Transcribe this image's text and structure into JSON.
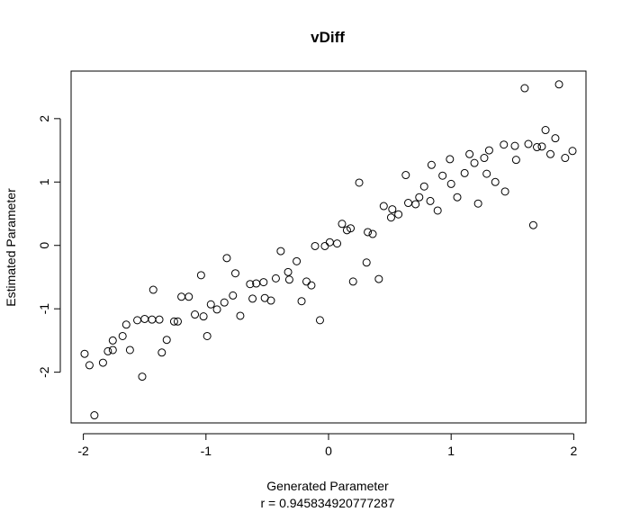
{
  "chart_data": {
    "type": "scatter",
    "title": "vDiff",
    "xlabel": "Generated Parameter",
    "xlabel_sub": "r = 0.945834920777287",
    "ylabel": "Estimated Parameter",
    "xlim": [
      -2.1,
      2.1
    ],
    "ylim": [
      -2.8,
      2.75
    ],
    "xticks": [
      -2,
      -1,
      0,
      1,
      2
    ],
    "yticks": [
      -2,
      -1,
      0,
      1,
      2
    ],
    "grid": false,
    "marker": "open-circle",
    "points": [
      [
        -1.99,
        -1.71
      ],
      [
        -1.95,
        -1.89
      ],
      [
        -1.91,
        -2.68
      ],
      [
        -1.84,
        -1.85
      ],
      [
        -1.8,
        -1.67
      ],
      [
        -1.76,
        -1.65
      ],
      [
        -1.76,
        -1.5
      ],
      [
        -1.68,
        -1.43
      ],
      [
        -1.65,
        -1.25
      ],
      [
        -1.62,
        -1.65
      ],
      [
        -1.56,
        -1.18
      ],
      [
        -1.52,
        -2.07
      ],
      [
        -1.5,
        -1.16
      ],
      [
        -1.44,
        -1.17
      ],
      [
        -1.43,
        -0.7
      ],
      [
        -1.38,
        -1.17
      ],
      [
        -1.36,
        -1.69
      ],
      [
        -1.32,
        -1.49
      ],
      [
        -1.26,
        -1.2
      ],
      [
        -1.23,
        -1.2
      ],
      [
        -1.2,
        -0.81
      ],
      [
        -1.14,
        -0.81
      ],
      [
        -1.09,
        -1.09
      ],
      [
        -1.04,
        -0.47
      ],
      [
        -1.02,
        -1.12
      ],
      [
        -0.99,
        -1.43
      ],
      [
        -0.96,
        -0.93
      ],
      [
        -0.91,
        -1.01
      ],
      [
        -0.85,
        -0.9
      ],
      [
        -0.83,
        -0.2
      ],
      [
        -0.78,
        -0.79
      ],
      [
        -0.76,
        -0.44
      ],
      [
        -0.72,
        -1.11
      ],
      [
        -0.64,
        -0.61
      ],
      [
        -0.62,
        -0.84
      ],
      [
        -0.59,
        -0.6
      ],
      [
        -0.53,
        -0.58
      ],
      [
        -0.52,
        -0.83
      ],
      [
        -0.47,
        -0.87
      ],
      [
        -0.43,
        -0.52
      ],
      [
        -0.39,
        -0.09
      ],
      [
        -0.33,
        -0.42
      ],
      [
        -0.32,
        -0.54
      ],
      [
        -0.26,
        -0.25
      ],
      [
        -0.22,
        -0.88
      ],
      [
        -0.18,
        -0.57
      ],
      [
        -0.14,
        -0.63
      ],
      [
        -0.11,
        -0.01
      ],
      [
        -0.07,
        -1.18
      ],
      [
        -0.03,
        -0.01
      ],
      [
        0.01,
        0.05
      ],
      [
        0.07,
        0.03
      ],
      [
        0.11,
        0.34
      ],
      [
        0.15,
        0.24
      ],
      [
        0.18,
        0.27
      ],
      [
        0.2,
        -0.57
      ],
      [
        0.25,
        0.99
      ],
      [
        0.31,
        -0.27
      ],
      [
        0.32,
        0.21
      ],
      [
        0.36,
        0.18
      ],
      [
        0.41,
        -0.53
      ],
      [
        0.45,
        0.62
      ],
      [
        0.51,
        0.44
      ],
      [
        0.52,
        0.57
      ],
      [
        0.57,
        0.49
      ],
      [
        0.63,
        1.11
      ],
      [
        0.65,
        0.67
      ],
      [
        0.71,
        0.65
      ],
      [
        0.74,
        0.76
      ],
      [
        0.78,
        0.93
      ],
      [
        0.83,
        0.7
      ],
      [
        0.84,
        1.27
      ],
      [
        0.89,
        0.55
      ],
      [
        0.93,
        1.1
      ],
      [
        0.99,
        1.36
      ],
      [
        1.0,
        0.97
      ],
      [
        1.05,
        0.76
      ],
      [
        1.11,
        1.14
      ],
      [
        1.15,
        1.44
      ],
      [
        1.19,
        1.3
      ],
      [
        1.22,
        0.66
      ],
      [
        1.27,
        1.38
      ],
      [
        1.29,
        1.13
      ],
      [
        1.31,
        1.5
      ],
      [
        1.36,
        1.0
      ],
      [
        1.43,
        1.59
      ],
      [
        1.44,
        0.85
      ],
      [
        1.52,
        1.57
      ],
      [
        1.53,
        1.35
      ],
      [
        1.6,
        2.48
      ],
      [
        1.63,
        1.6
      ],
      [
        1.67,
        0.32
      ],
      [
        1.7,
        1.55
      ],
      [
        1.74,
        1.56
      ],
      [
        1.77,
        1.82
      ],
      [
        1.81,
        1.44
      ],
      [
        1.85,
        1.69
      ],
      [
        1.88,
        2.54
      ],
      [
        1.93,
        1.38
      ],
      [
        1.99,
        1.49
      ]
    ]
  }
}
